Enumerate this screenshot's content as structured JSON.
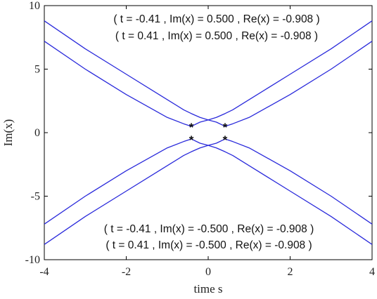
{
  "chart_data": {
    "type": "line",
    "title": "",
    "xlabel": "time s",
    "ylabel": "Im(x)",
    "xlim": [
      -4,
      4
    ],
    "ylim": [
      -10,
      10
    ],
    "xticks": [
      -4,
      -2,
      0,
      2,
      4
    ],
    "xtick_labels": [
      "-4",
      "-2",
      "0",
      "2",
      "4"
    ],
    "yticks": [
      -10,
      -5,
      0,
      5,
      10
    ],
    "ytick_labels": [
      "-10",
      "-5",
      "0",
      "5",
      "10"
    ],
    "grid": false,
    "line_color": "#2a2adb",
    "series": [
      {
        "x": [
          -4,
          -3,
          -2,
          -1,
          -0.6,
          -0.41,
          -0.2,
          0,
          0.2,
          0.41,
          0.6,
          1,
          2,
          3,
          4
        ],
        "y": [
          8.8,
          6.6,
          4.6,
          2.6,
          1.8,
          1.5,
          1.2,
          1.0,
          0.83,
          0.5,
          0.7,
          1.2,
          3.0,
          5.0,
          7.2
        ]
      },
      {
        "x": [
          -4,
          -3,
          -2,
          -1,
          -0.6,
          -0.41,
          -0.2,
          0,
          0.2,
          0.41,
          0.6,
          1,
          2,
          3,
          4
        ],
        "y": [
          7.2,
          5.0,
          3.0,
          1.2,
          0.7,
          0.5,
          0.83,
          1.0,
          1.2,
          1.5,
          1.8,
          2.6,
          4.6,
          6.6,
          8.8
        ]
      },
      {
        "x": [
          -4,
          -3,
          -2,
          -1,
          -0.6,
          -0.41,
          -0.2,
          0,
          0.2,
          0.41,
          0.6,
          1,
          2,
          3,
          4
        ],
        "y": [
          -7.2,
          -5.0,
          -3.0,
          -1.2,
          -0.7,
          -0.5,
          -0.83,
          -1.0,
          -1.2,
          -1.5,
          -1.8,
          -2.6,
          -4.6,
          -6.6,
          -8.8
        ]
      },
      {
        "x": [
          -4,
          -3,
          -2,
          -1,
          -0.6,
          -0.41,
          -0.2,
          0,
          0.2,
          0.41,
          0.6,
          1,
          2,
          3,
          4
        ],
        "y": [
          -8.8,
          -6.6,
          -4.6,
          -2.6,
          -1.8,
          -1.5,
          -1.2,
          -1.0,
          -0.83,
          -0.5,
          -0.7,
          -1.2,
          -3.0,
          -5.0,
          -7.2
        ]
      }
    ],
    "markers": [
      {
        "x": -0.41,
        "y": 0.5,
        "symbol": "*"
      },
      {
        "x": 0.41,
        "y": 0.5,
        "symbol": "*"
      },
      {
        "x": -0.41,
        "y": -0.5,
        "symbol": "*"
      },
      {
        "x": 0.41,
        "y": -0.5,
        "symbol": "*"
      }
    ],
    "annotations": [
      "( t = -0.41 , Im(x) = 0.500 , Re(x) = -0.908 )",
      "( t = 0.41 , Im(x) = 0.500 , Re(x) = -0.908 )",
      "( t = -0.41 , Im(x) = -0.500 , Re(x) = -0.908 )",
      "( t = 0.41 , Im(x) = -0.500 , Re(x) = -0.908 )"
    ]
  }
}
